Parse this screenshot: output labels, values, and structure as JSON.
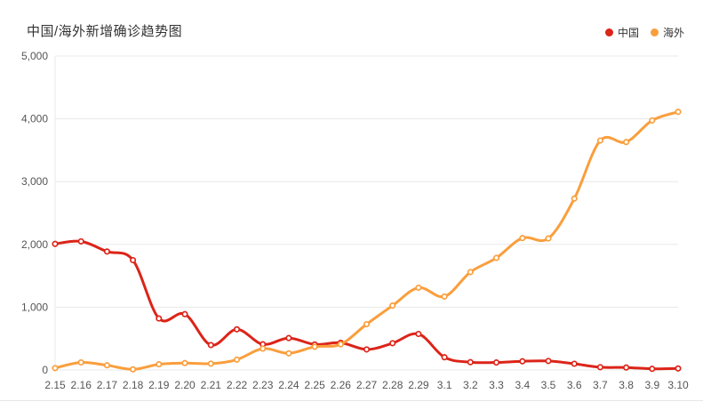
{
  "title": "中国/海外新增确诊趋势图",
  "legend": [
    {
      "label": "中国",
      "color": "#dc2418"
    },
    {
      "label": "海外",
      "color": "#fa9e3c"
    }
  ],
  "colors": {
    "china_line": "#dc2418",
    "overseas_line": "#fa9e3c",
    "grid": "#e8e8e8",
    "axis_label": "#555555",
    "title_text": "#333333",
    "divider": "#e6e6e6",
    "marker_fill": "#ffffff"
  },
  "chart_data": {
    "type": "line",
    "title": "中国/海外新增确诊趋势图",
    "categories": [
      "2.15",
      "2.16",
      "2.17",
      "2.18",
      "2.19",
      "2.20",
      "2.21",
      "2.22",
      "2.23",
      "2.24",
      "2.25",
      "2.26",
      "2.27",
      "2.28",
      "2.29",
      "3.1",
      "3.2",
      "3.3",
      "3.4",
      "3.5",
      "3.6",
      "3.7",
      "3.8",
      "3.9",
      "3.10"
    ],
    "series": [
      {
        "name": "中国",
        "color": "#dc2418",
        "values": [
          2009,
          2048,
          1886,
          1749,
          820,
          889,
          397,
          648,
          409,
          508,
          406,
          433,
          327,
          427,
          573,
          202,
          125,
          119,
          139,
          143,
          99,
          44,
          40,
          19,
          24
        ]
      },
      {
        "name": "海外",
        "color": "#fa9e3c",
        "values": [
          30,
          120,
          75,
          10,
          90,
          110,
          100,
          165,
          340,
          265,
          370,
          410,
          730,
          1025,
          1310,
          1170,
          1560,
          1785,
          2100,
          2095,
          2730,
          3655,
          3630,
          3975,
          4110
        ]
      }
    ],
    "xlabel": "",
    "ylabel": "",
    "ylim": [
      0,
      5000
    ],
    "y_ticks": [
      0,
      1000,
      2000,
      3000,
      4000,
      5000
    ],
    "y_tick_labels": [
      "0",
      "1,000",
      "2,000",
      "3,000",
      "4,000",
      "5,000"
    ],
    "grid": true,
    "smooth": true,
    "markers": "hollow-circle",
    "legend_position": "top-right"
  }
}
